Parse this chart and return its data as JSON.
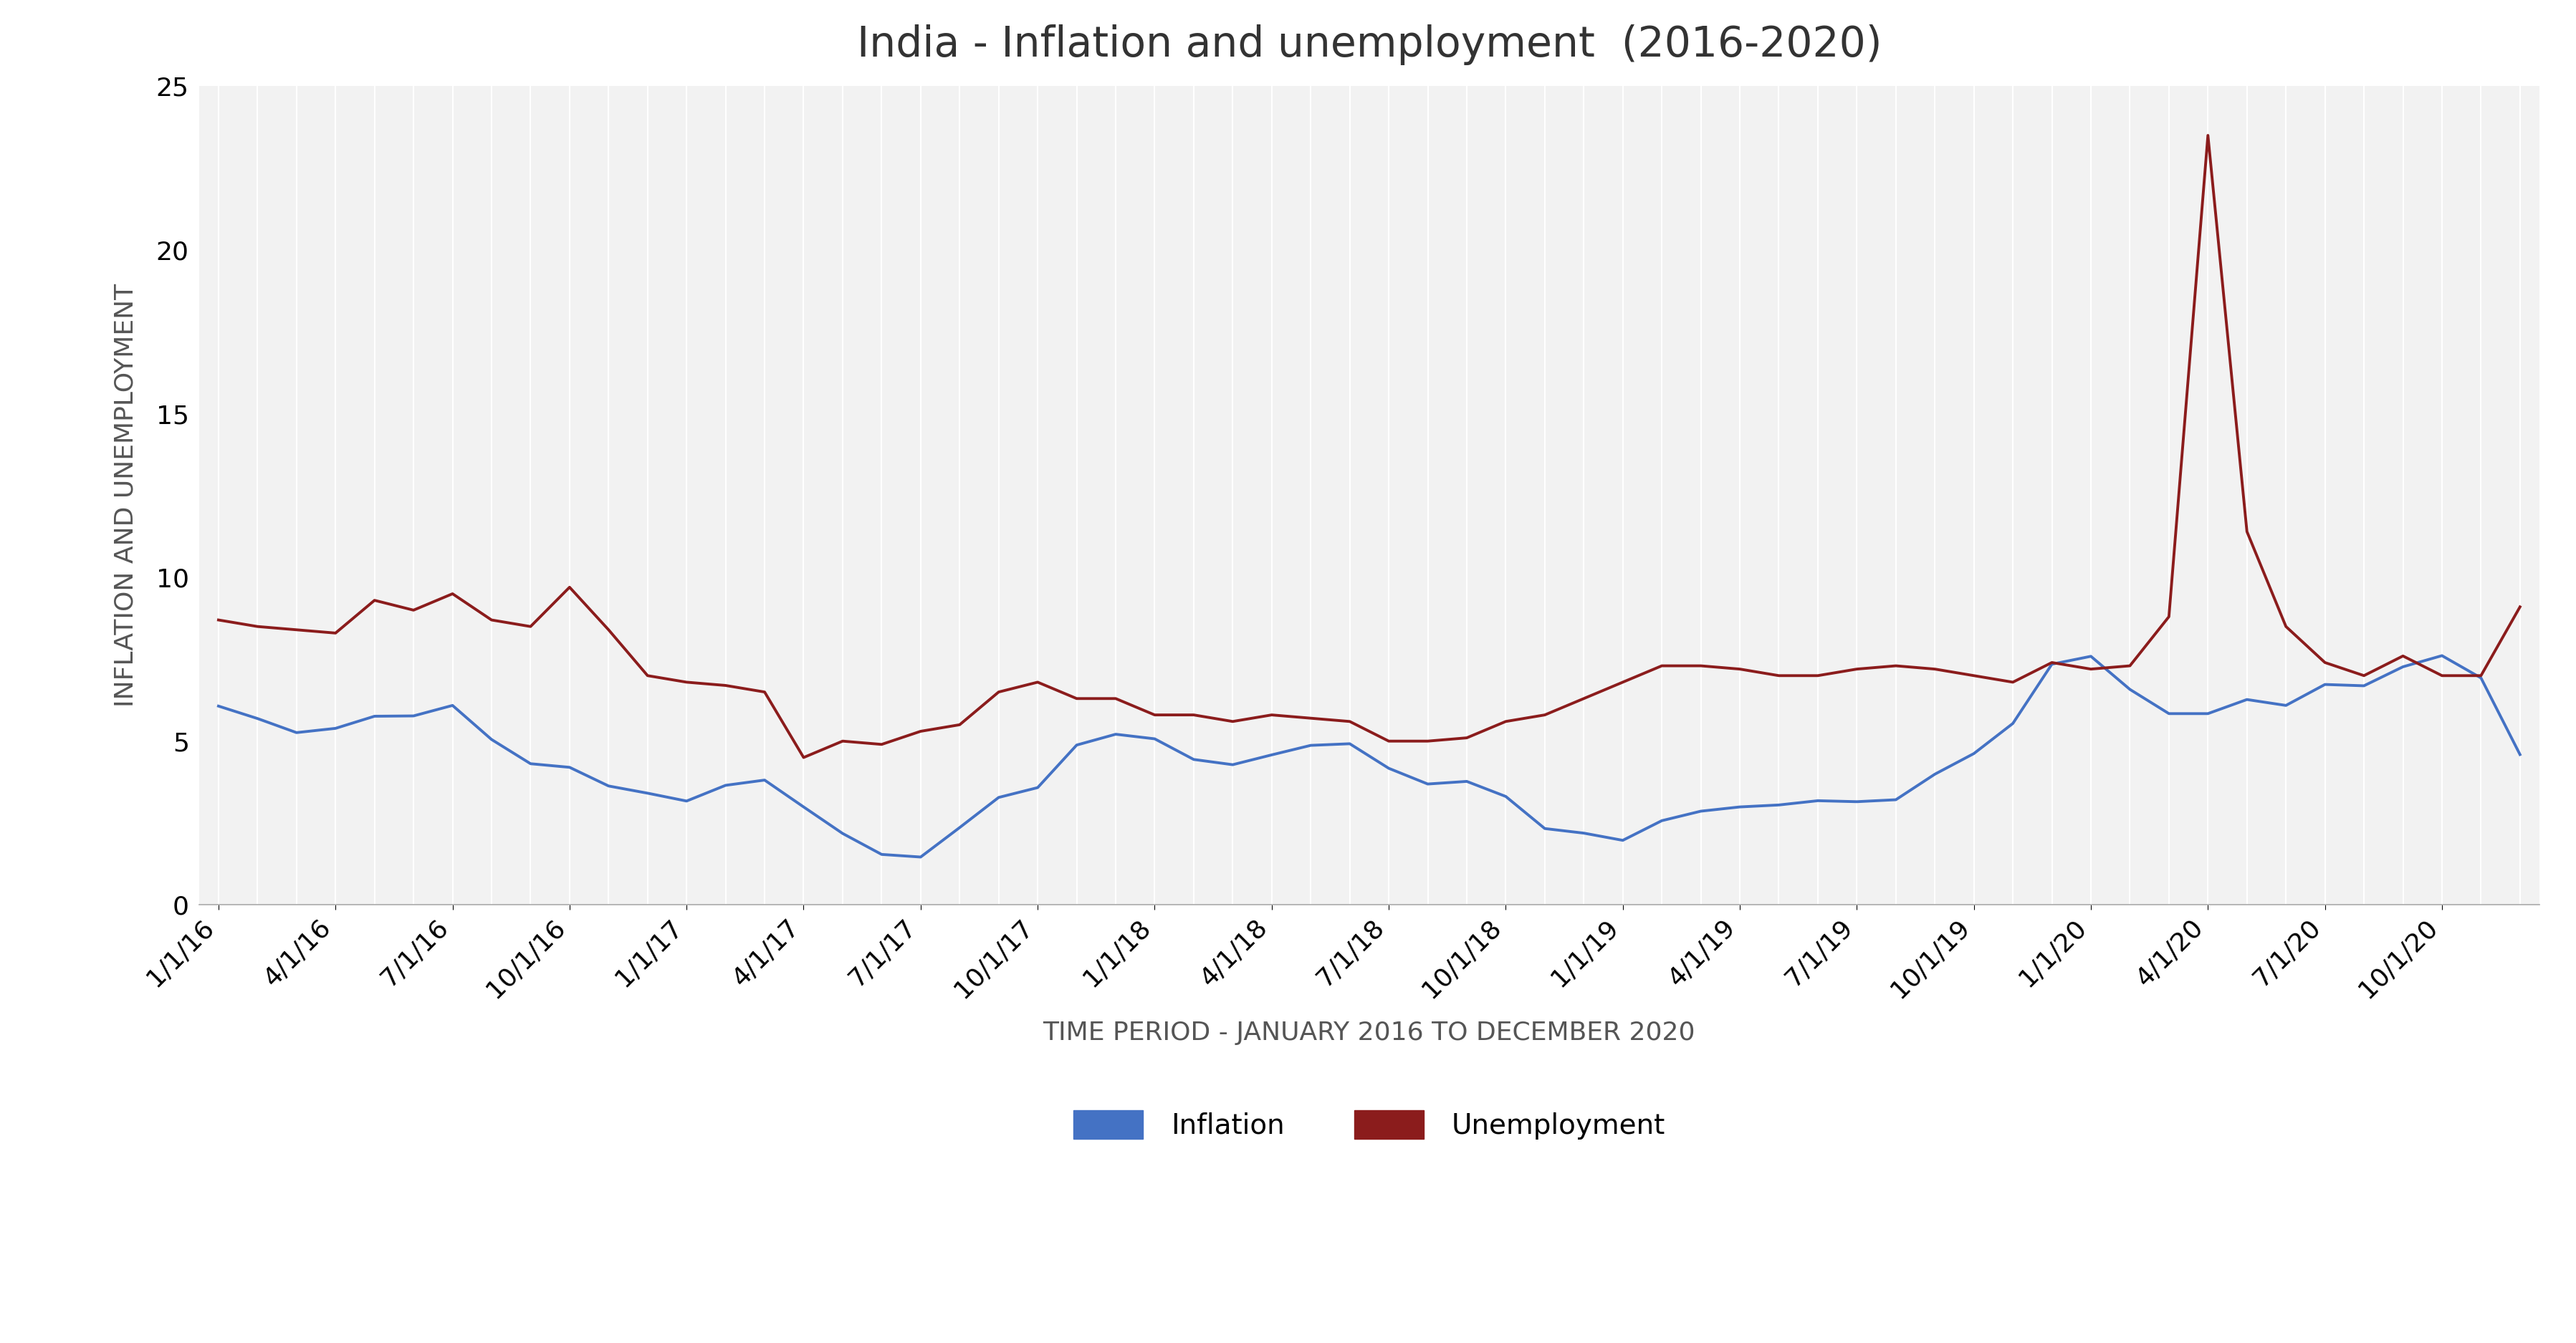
{
  "title": "India - Inflation and unemployment  (2016-2020)",
  "xlabel": "TIME PERIOD - JANUARY 2016 TO DECEMBER 2020",
  "ylabel": "INFLATION AND UNEMPLOYMENT",
  "ylim": [
    0,
    25
  ],
  "yticks": [
    0,
    5,
    10,
    15,
    20,
    25
  ],
  "inflation_color": "#4472C4",
  "unemployment_color": "#8B1C1C",
  "background_color": "#FFFFFF",
  "plot_bg_color": "#F2F2F2",
  "grid_color": "#FFFFFF",
  "title_fontsize": 42,
  "label_fontsize": 26,
  "tick_fontsize": 26,
  "legend_fontsize": 28,
  "x_tick_labels": [
    "1/1/16",
    "4/1/16",
    "7/1/16",
    "10/1/16",
    "1/1/17",
    "4/1/17",
    "7/1/17",
    "10/1/17",
    "1/1/18",
    "4/1/18",
    "7/1/18",
    "10/1/18",
    "1/1/19",
    "4/1/19",
    "7/1/19",
    "10/1/19",
    "1/1/20",
    "4/1/20",
    "7/1/20",
    "10/1/20"
  ],
  "x_tick_positions": [
    0,
    3,
    6,
    9,
    12,
    15,
    18,
    21,
    24,
    27,
    30,
    33,
    36,
    39,
    42,
    45,
    48,
    51,
    54,
    57
  ],
  "inflation": [
    6.07,
    5.69,
    5.26,
    5.39,
    5.76,
    5.77,
    6.09,
    5.05,
    4.31,
    4.2,
    3.63,
    3.41,
    3.17,
    3.65,
    3.81,
    2.99,
    2.18,
    1.54,
    1.46,
    2.36,
    3.28,
    3.58,
    4.88,
    5.21,
    5.07,
    4.44,
    4.28,
    4.58,
    4.87,
    4.92,
    4.17,
    3.69,
    3.77,
    3.31,
    2.33,
    2.19,
    1.97,
    2.57,
    2.86,
    2.99,
    3.05,
    3.18,
    3.15,
    3.21,
    3.99,
    4.62,
    5.54,
    7.35,
    7.59,
    6.58,
    5.84,
    5.84,
    6.27,
    6.09,
    6.73,
    6.69,
    7.27,
    7.61,
    6.93,
    4.59
  ],
  "unemployment": [
    8.7,
    8.5,
    8.4,
    8.3,
    9.3,
    9.0,
    9.5,
    8.7,
    8.5,
    9.7,
    8.4,
    7.0,
    6.8,
    6.7,
    6.5,
    4.5,
    5.0,
    4.9,
    5.3,
    5.5,
    6.5,
    6.8,
    6.3,
    6.3,
    5.8,
    5.8,
    5.6,
    5.8,
    5.7,
    5.6,
    5.0,
    5.0,
    5.1,
    5.6,
    5.8,
    6.3,
    6.8,
    7.3,
    7.3,
    7.2,
    7.0,
    7.0,
    7.2,
    7.3,
    7.2,
    7.0,
    6.8,
    7.4,
    7.2,
    7.3,
    8.8,
    23.5,
    11.4,
    8.5,
    7.4,
    7.0,
    7.6,
    7.0,
    7.0,
    9.1
  ]
}
